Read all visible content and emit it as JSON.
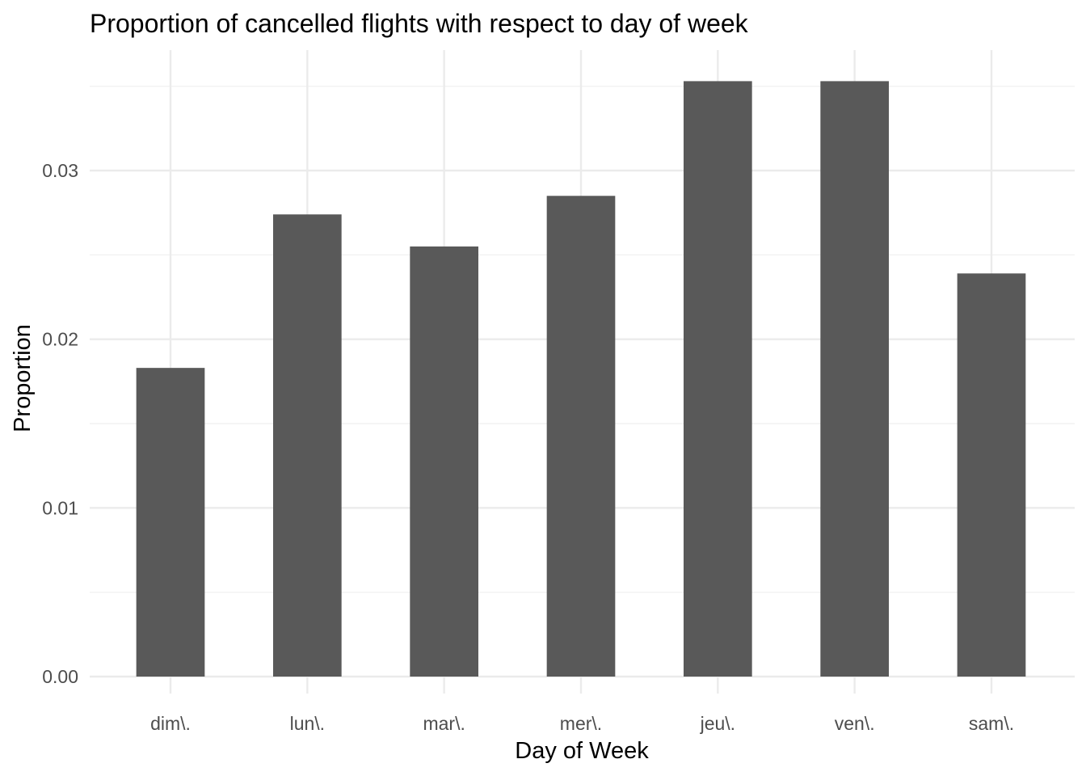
{
  "chart_data": {
    "type": "bar",
    "title": "Proportion of cancelled flights with respect to day of week",
    "xlabel": "Day of Week",
    "ylabel": "Proportion",
    "categories": [
      "dim\\.",
      "lun\\.",
      "mar\\.",
      "mer\\.",
      "jeu\\.",
      "ven\\.",
      "sam\\."
    ],
    "values": [
      0.0183,
      0.0274,
      0.0255,
      0.0285,
      0.0353,
      0.0353,
      0.0239
    ],
    "ylim": [
      0,
      0.036
    ],
    "yticks": [
      0,
      0.01,
      0.02,
      0.03
    ],
    "ytick_labels": [
      "0.00",
      "0.01",
      "0.02",
      "0.03"
    ],
    "grid": true,
    "bar_color": "#595959",
    "grid_color": "#ebebeb",
    "background": "#ffffff"
  }
}
